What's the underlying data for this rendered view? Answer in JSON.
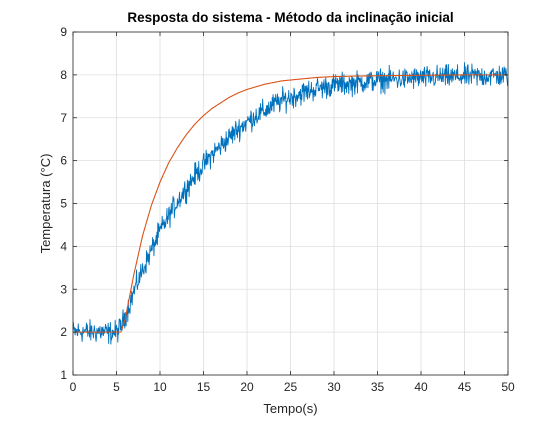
{
  "chart_data": {
    "type": "line",
    "title": "Resposta do sistema - Método da inclinação inicial",
    "xlabel": "Tempo(s)",
    "ylabel": "Temperatura (°C)",
    "xlim": [
      0,
      50
    ],
    "ylim": [
      1,
      9
    ],
    "xticks": [
      0,
      5,
      10,
      15,
      20,
      25,
      30,
      35,
      40,
      45,
      50
    ],
    "yticks": [
      1,
      2,
      3,
      4,
      5,
      6,
      7,
      8,
      9
    ],
    "grid": true,
    "legend": "none",
    "series": [
      {
        "kind": "measured",
        "color": "#0072BD",
        "noise_amplitude": 0.13,
        "x": [
          0,
          1,
          2,
          3,
          4,
          5,
          5.5,
          6,
          6.5,
          7,
          7.5,
          8,
          9,
          10,
          11,
          12,
          13,
          14,
          15,
          16,
          17,
          18,
          19,
          20,
          21,
          22,
          23,
          24,
          25,
          26,
          27,
          28,
          29,
          30,
          31,
          32,
          33,
          34,
          35,
          36,
          37,
          38,
          39,
          40,
          41,
          42,
          43,
          44,
          45,
          46,
          47,
          48,
          49,
          50
        ],
        "y": [
          2.0,
          2.02,
          2.0,
          2.02,
          1.98,
          2.0,
          2.12,
          2.38,
          2.65,
          2.95,
          3.2,
          3.45,
          3.9,
          4.35,
          4.7,
          5.05,
          5.35,
          5.65,
          5.9,
          6.15,
          6.35,
          6.55,
          6.75,
          6.9,
          7.05,
          7.15,
          7.3,
          7.4,
          7.48,
          7.55,
          7.62,
          7.68,
          7.72,
          7.76,
          7.78,
          7.8,
          7.83,
          7.85,
          7.87,
          7.88,
          7.9,
          7.9,
          7.92,
          7.93,
          7.93,
          7.95,
          7.95,
          7.96,
          7.96,
          7.97,
          7.97,
          7.98,
          7.98,
          7.98
        ]
      },
      {
        "kind": "model",
        "color": "#D95319",
        "x": [
          0,
          5.5,
          6,
          7,
          8,
          9,
          10,
          11,
          12,
          13,
          14,
          15,
          16,
          17,
          18,
          19,
          20,
          22,
          24,
          26,
          28,
          30,
          32,
          35,
          40,
          45,
          50
        ],
        "y": [
          2.0,
          2.0,
          2.3,
          3.35,
          4.25,
          4.95,
          5.5,
          5.95,
          6.3,
          6.6,
          6.85,
          7.05,
          7.22,
          7.35,
          7.48,
          7.58,
          7.66,
          7.78,
          7.86,
          7.9,
          7.94,
          7.96,
          7.97,
          7.98,
          7.99,
          8.0,
          8.0
        ]
      }
    ]
  }
}
